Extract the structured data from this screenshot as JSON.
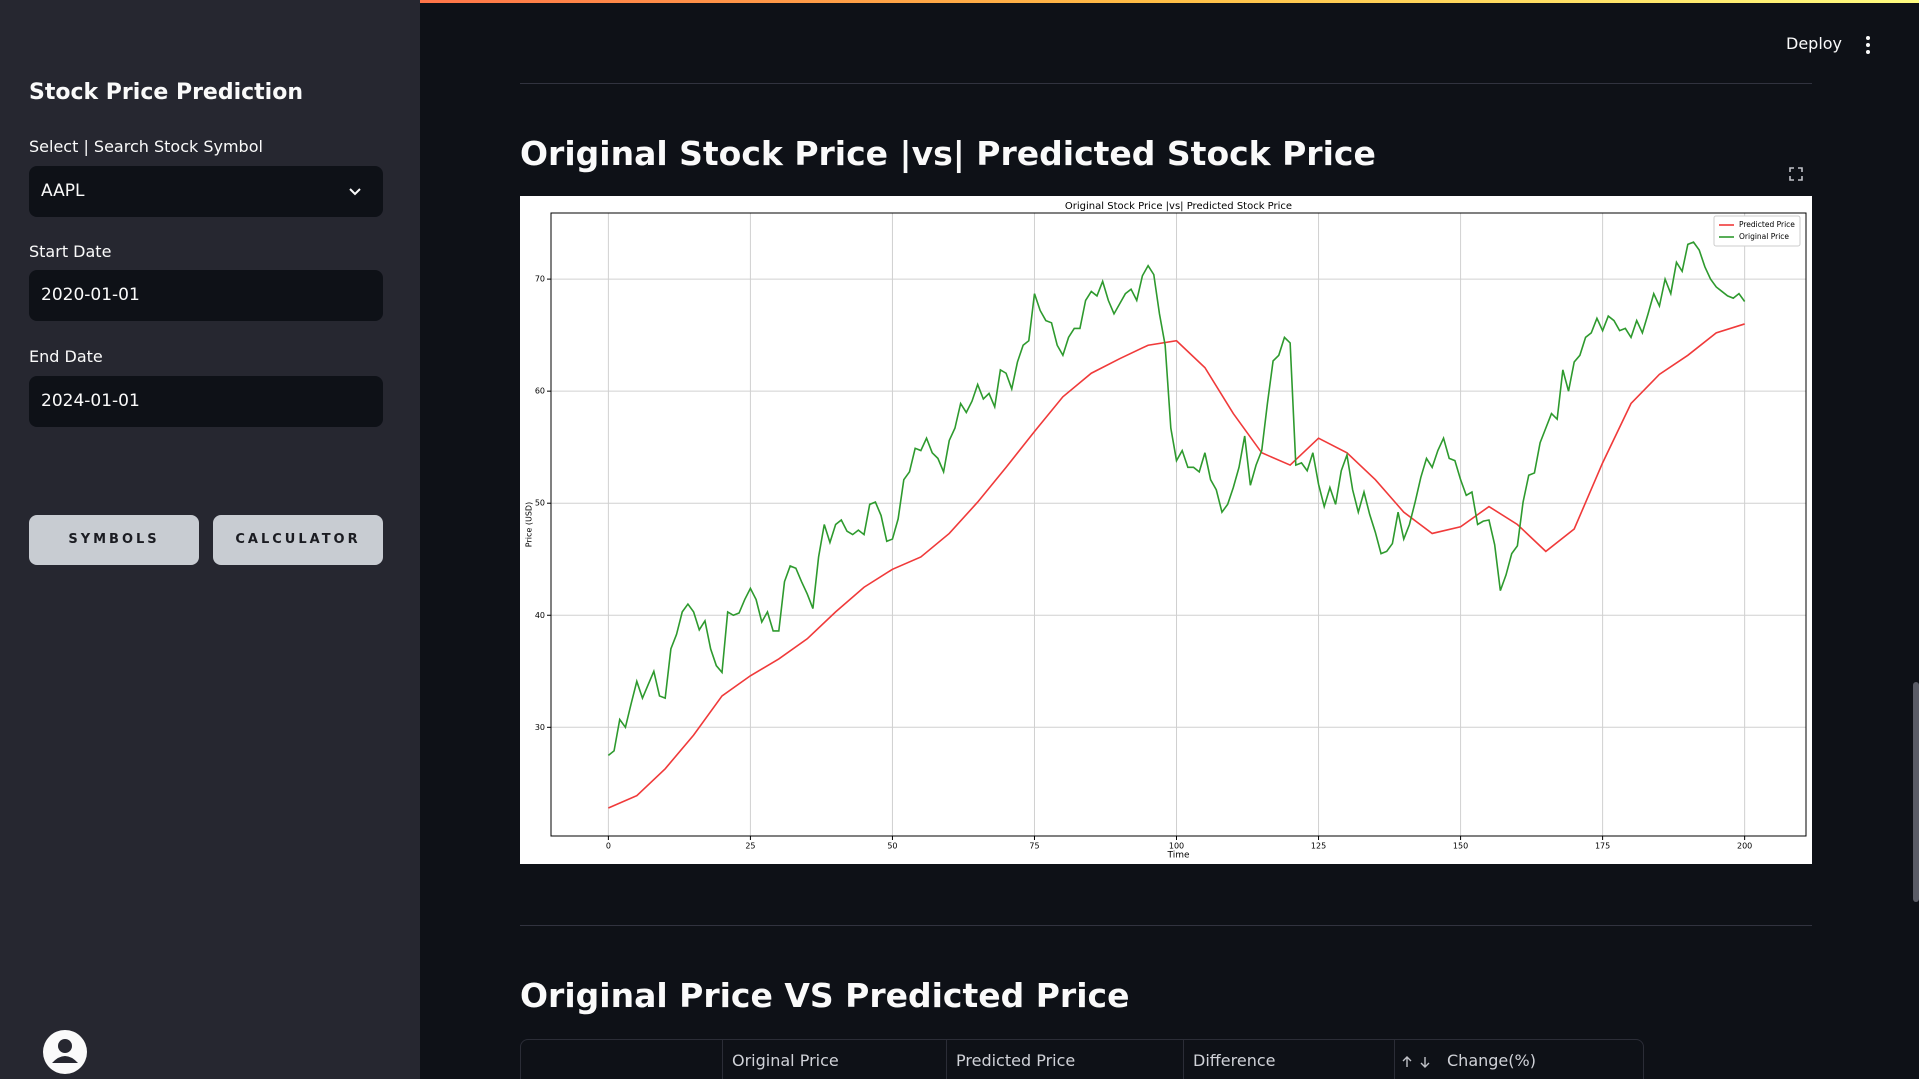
{
  "app": {
    "deploy": "Deploy"
  },
  "sidebar": {
    "title": "Stock Price Prediction",
    "symbol_label": "Select | Search Stock Symbol",
    "symbol": "AAPL",
    "start_label": "Start Date",
    "start_date": "2020-01-01",
    "end_label": "End Date",
    "end_date": "2024-01-01",
    "buttons": [
      "SYMBOLS",
      "CALCULATOR"
    ]
  },
  "main": {
    "section1_title": "Original Stock Price |vs| Predicted Stock Price",
    "section2_title": "Original Price VS Predicted Price",
    "table": {
      "headers": [
        "Original Price",
        "Predicted Price",
        "Difference",
        "Change(%)"
      ]
    }
  },
  "chart_data": {
    "type": "line",
    "title": "Original Stock Price |vs| Predicted Stock Price",
    "xlabel": "Time",
    "ylabel": "Price (USD)",
    "xlim": [
      -10.1,
      210.8
    ],
    "ylim": [
      20.3,
      75.9
    ],
    "xticks": [
      0,
      25,
      50,
      75,
      100,
      125,
      150,
      175,
      200
    ],
    "yticks": [
      30,
      40,
      50,
      60,
      70
    ],
    "grid": true,
    "legend": "upper right",
    "series": [
      {
        "name": "Predicted Price",
        "color": "#f03a3a",
        "x": [
          0,
          5,
          10,
          15,
          20,
          25,
          30,
          35,
          40,
          45,
          50,
          55,
          60,
          65,
          70,
          75,
          80,
          85,
          90,
          95,
          100,
          105,
          110,
          115,
          120,
          125,
          130,
          135,
          140,
          145,
          150,
          155,
          160,
          165,
          170,
          175,
          180,
          185,
          190,
          195,
          200
        ],
        "values": [
          22.8,
          23.9,
          26.3,
          29.3,
          32.8,
          34.6,
          36.1,
          37.9,
          40.3,
          42.5,
          44.1,
          45.2,
          47.3,
          50.1,
          53.2,
          56.4,
          59.5,
          61.6,
          62.9,
          64.1,
          64.5,
          62.1,
          58.0,
          54.5,
          53.4,
          55.8,
          54.5,
          52.1,
          49.2,
          47.3,
          47.9,
          49.7,
          48.1,
          45.7,
          47.7,
          53.6,
          58.9,
          61.5,
          63.2,
          65.2,
          66.0
        ]
      },
      {
        "name": "Original Price",
        "color": "#2e9a2e",
        "x": [
          0,
          1,
          2,
          3,
          4,
          5,
          6,
          7,
          8,
          9,
          10,
          11,
          12,
          13,
          14,
          15,
          16,
          17,
          18,
          19,
          20,
          21,
          22,
          23,
          24,
          25,
          26,
          27,
          28,
          29,
          30,
          31,
          32,
          33,
          34,
          35,
          36,
          37,
          38,
          39,
          40,
          41,
          42,
          43,
          44,
          45,
          46,
          47,
          48,
          49,
          50,
          51,
          52,
          53,
          54,
          55,
          56,
          57,
          58,
          59,
          60,
          61,
          62,
          63,
          64,
          65,
          66,
          67,
          68,
          69,
          70,
          71,
          72,
          73,
          74,
          75,
          76,
          77,
          78,
          79,
          80,
          81,
          82,
          83,
          84,
          85,
          86,
          87,
          88,
          89,
          90,
          91,
          92,
          93,
          94,
          95,
          96,
          97,
          98,
          99,
          100,
          101,
          102,
          103,
          104,
          105,
          106,
          107,
          108,
          109,
          110,
          111,
          112,
          113,
          114,
          115,
          116,
          117,
          118,
          119,
          120,
          121,
          122,
          123,
          124,
          125,
          126,
          127,
          128,
          129,
          130,
          131,
          132,
          133,
          134,
          135,
          136,
          137,
          138,
          139,
          140,
          141,
          142,
          143,
          144,
          145,
          146,
          147,
          148,
          149,
          150,
          151,
          152,
          153,
          154,
          155,
          156,
          157,
          158,
          159,
          160,
          161,
          162,
          163,
          164,
          165,
          166,
          167,
          168,
          169,
          170,
          171,
          172,
          173,
          174,
          175,
          176,
          177,
          178,
          179,
          180,
          181,
          182,
          183,
          184,
          185,
          186,
          187,
          188,
          189,
          190,
          191,
          192,
          193,
          194,
          195,
          196,
          197,
          198,
          199,
          200
        ],
        "values": [
          27.5,
          27.9,
          30.7,
          30.0,
          32.1,
          34.1,
          32.6,
          33.8,
          35.0,
          32.8,
          32.6,
          37.0,
          38.3,
          40.3,
          41.0,
          40.3,
          38.7,
          39.5,
          37.0,
          35.5,
          34.9,
          40.3,
          40.0,
          40.2,
          41.4,
          42.4,
          41.4,
          39.4,
          40.3,
          38.6,
          38.6,
          43.0,
          44.4,
          44.2,
          43.0,
          41.9,
          40.6,
          45.2,
          48.1,
          46.5,
          48.1,
          48.5,
          47.5,
          47.2,
          47.6,
          47.2,
          49.9,
          50.1,
          48.9,
          46.6,
          46.8,
          48.6,
          52.1,
          52.8,
          54.9,
          54.7,
          55.8,
          54.5,
          54.0,
          52.8,
          55.6,
          56.7,
          58.9,
          58.1,
          59.1,
          60.6,
          59.3,
          59.8,
          58.6,
          61.9,
          61.6,
          60.2,
          62.6,
          64.1,
          64.5,
          68.7,
          67.2,
          66.3,
          66.1,
          64.1,
          63.2,
          64.8,
          65.6,
          65.6,
          68.1,
          68.9,
          68.5,
          69.8,
          68.1,
          66.9,
          67.8,
          68.7,
          69.1,
          68.1,
          70.3,
          71.2,
          70.4,
          66.9,
          64.1,
          56.7,
          53.8,
          54.7,
          53.2,
          53.2,
          52.8,
          54.5,
          52.1,
          51.2,
          49.2,
          49.9,
          51.4,
          53.2,
          56.0,
          51.6,
          53.4,
          54.7,
          58.9,
          62.7,
          63.2,
          64.8,
          64.3,
          53.4,
          53.6,
          52.9,
          54.5,
          51.7,
          49.7,
          51.4,
          49.9,
          52.9,
          54.3,
          51.2,
          49.2,
          51.0,
          49.0,
          47.4,
          45.5,
          45.7,
          46.4,
          49.2,
          46.8,
          48.1,
          50.1,
          52.3,
          54.0,
          53.2,
          54.7,
          55.8,
          54.0,
          53.8,
          52.1,
          50.7,
          51.0,
          48.1,
          48.4,
          48.5,
          46.3,
          42.2,
          43.6,
          45.5,
          46.2,
          50.1,
          52.5,
          52.7,
          55.4,
          56.7,
          58.0,
          57.5,
          61.9,
          60.0,
          62.6,
          63.2,
          64.8,
          65.2,
          66.5,
          65.4,
          66.7,
          66.3,
          65.4,
          65.6,
          64.8,
          66.3,
          65.2,
          66.9,
          68.7,
          67.6,
          70.0,
          68.7,
          71.5,
          70.7,
          73.1,
          73.3,
          72.6,
          71.1,
          70.0,
          69.3,
          68.9,
          68.5,
          68.3,
          68.7,
          68.0
        ]
      }
    ]
  }
}
